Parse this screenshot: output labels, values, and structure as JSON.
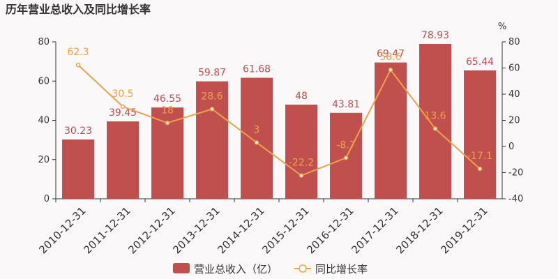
{
  "chart_data": {
    "type": "bar-line",
    "title": "历年营业总收入及同比增长率",
    "y2label": "%",
    "categories": [
      "2010-12-31",
      "2011-12-31",
      "2012-12-31",
      "2013-12-31",
      "2014-12-31",
      "2015-12-31",
      "2016-12-31",
      "2017-12-31",
      "2018-12-31",
      "2019-12-31"
    ],
    "series": [
      {
        "name": "营业总收入（亿）",
        "type": "bar",
        "color": "#c0504d",
        "values": [
          30.23,
          39.45,
          46.55,
          59.87,
          61.68,
          48,
          43.81,
          69.47,
          78.93,
          65.44
        ]
      },
      {
        "name": "同比增长率",
        "type": "line",
        "axis": "y2",
        "color": "#f0a04b",
        "values": [
          62.3,
          30.5,
          18,
          28.6,
          3,
          -22.2,
          -8.7,
          58.6,
          13.6,
          -17.1
        ]
      }
    ],
    "ylim": [
      0,
      80
    ],
    "yticks": [
      0,
      20,
      40,
      60,
      80
    ],
    "y2lim": [
      -40,
      80
    ],
    "y2ticks": [
      -40,
      -20,
      0,
      20,
      40,
      60,
      80
    ],
    "grid": false
  }
}
